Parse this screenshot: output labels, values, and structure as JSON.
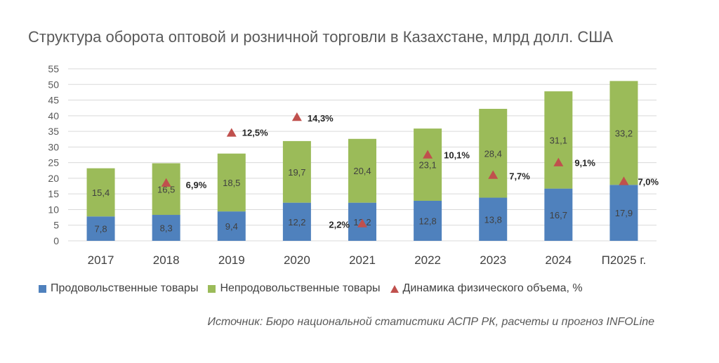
{
  "chart_data": {
    "type": "bar",
    "stacked": true,
    "title": "Структура оборота оптовой и розничной торговли в Казахстане, млрд долл. США",
    "categories": [
      "2017",
      "2018",
      "2019",
      "2020",
      "2021",
      "2022",
      "2023",
      "2024",
      "П2025 г."
    ],
    "series": [
      {
        "name": "Продовольственные товары",
        "color": "#4f81bd",
        "values": [
          7.8,
          8.3,
          9.4,
          12.2,
          12.2,
          12.8,
          13.8,
          16.7,
          17.9
        ],
        "labels": [
          "7,8",
          "8,3",
          "9,4",
          "12,2",
          "12,2",
          "12,8",
          "13,8",
          "16,7",
          "17,9"
        ]
      },
      {
        "name": "Непродовольственные товары",
        "color": "#9bbb59",
        "values": [
          15.4,
          16.5,
          18.5,
          19.7,
          20.4,
          23.1,
          28.4,
          31.1,
          33.2
        ],
        "labels": [
          "15,4",
          "16,5",
          "18,5",
          "19,7",
          "20,4",
          "23,1",
          "28,4",
          "31,1",
          "33,2"
        ]
      }
    ],
    "markers": {
      "name": "Динамика физического объема, %",
      "color": "#c0504d",
      "values": [
        null,
        6.9,
        12.5,
        14.3,
        2.2,
        10.1,
        7.7,
        9.1,
        7.0
      ],
      "labels": [
        "",
        "6,9%",
        "12,5%",
        "14,3%",
        "2,2%",
        "10,1%",
        "7,7%",
        "9,1%",
        "7,0%"
      ]
    },
    "ylim": [
      0,
      55
    ],
    "yticks": [
      0,
      5,
      10,
      15,
      20,
      25,
      30,
      35,
      40,
      45,
      50,
      55
    ],
    "grid": true,
    "legend": "bottom"
  },
  "source": "Источник: Бюро национальной статистики АСПР РК, расчеты и прогноз INFOLine"
}
